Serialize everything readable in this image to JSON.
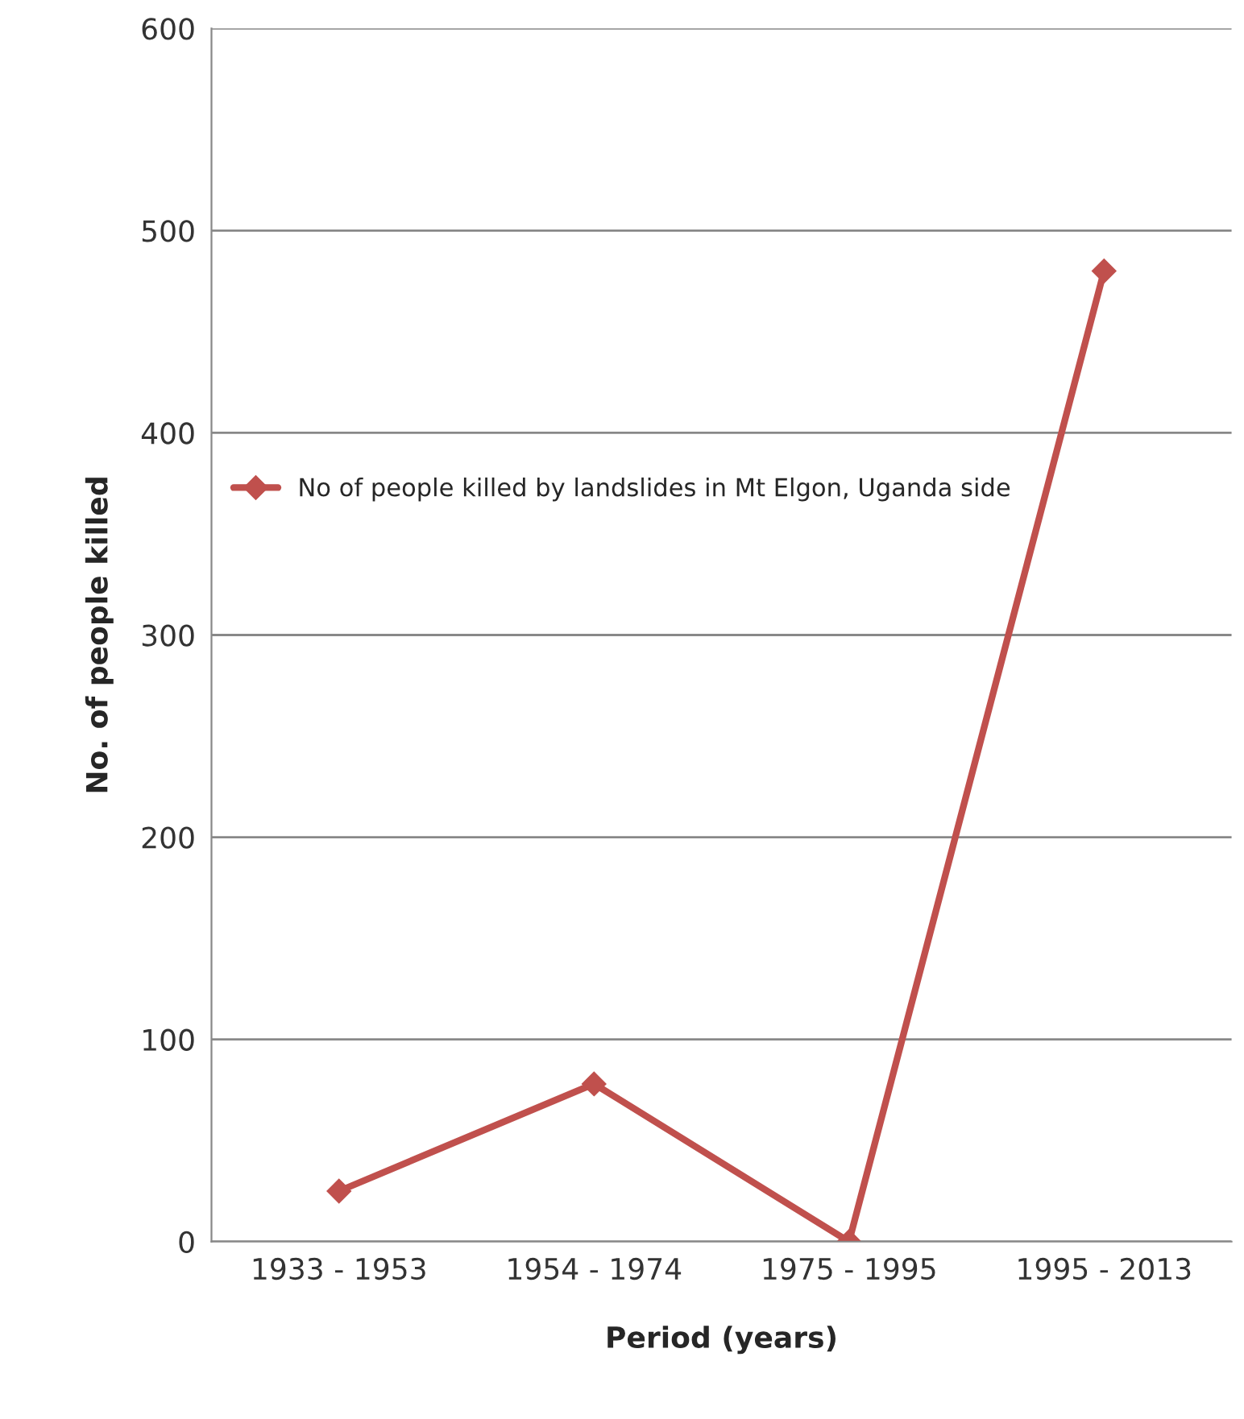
{
  "chart_data": {
    "type": "line",
    "xlabel": "Period (years)",
    "ylabel": "No. of people killed",
    "categories": [
      "1933 - 1953",
      "1954 - 1974",
      "1975 - 1995",
      "1995 - 2013"
    ],
    "series": [
      {
        "name": "No of people killed by landslides in Mt Elgon, Uganda side",
        "color": "#c0504d",
        "values": [
          25,
          78,
          0,
          480
        ]
      }
    ],
    "ylim": [
      0,
      600
    ],
    "yticks": [
      0,
      100,
      200,
      300,
      400,
      500,
      600
    ],
    "grid": "y",
    "legend": "left",
    "marker": "diamond",
    "line_style": "solid"
  }
}
